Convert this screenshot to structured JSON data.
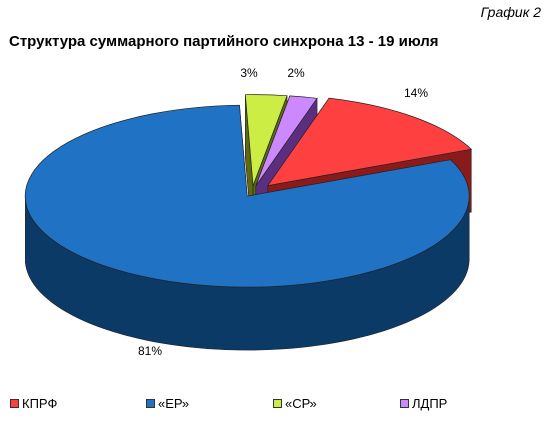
{
  "page": {
    "graph_number": "График 2",
    "title": "Структура суммарного партийного синхрона 13 - 19 июля"
  },
  "chart_data": {
    "type": "pie",
    "title": "Структура суммарного партийного синхрона 13 - 19 июля",
    "categories": [
      "КПРФ",
      "«ЕР»",
      "«СР»",
      "ЛДПР"
    ],
    "values": [
      14,
      81,
      3,
      2
    ],
    "value_labels": [
      "14%",
      "81%",
      "3%",
      "2%"
    ],
    "colors": [
      "#ff4040",
      "#1f72c4",
      "#ccee44",
      "#cc88ff"
    ],
    "side_colors": [
      "#8b1a1a",
      "#0c3a66",
      "#5d6a10",
      "#5c2e80"
    ],
    "exploded": true,
    "three_d": true,
    "legend_position": "bottom"
  }
}
